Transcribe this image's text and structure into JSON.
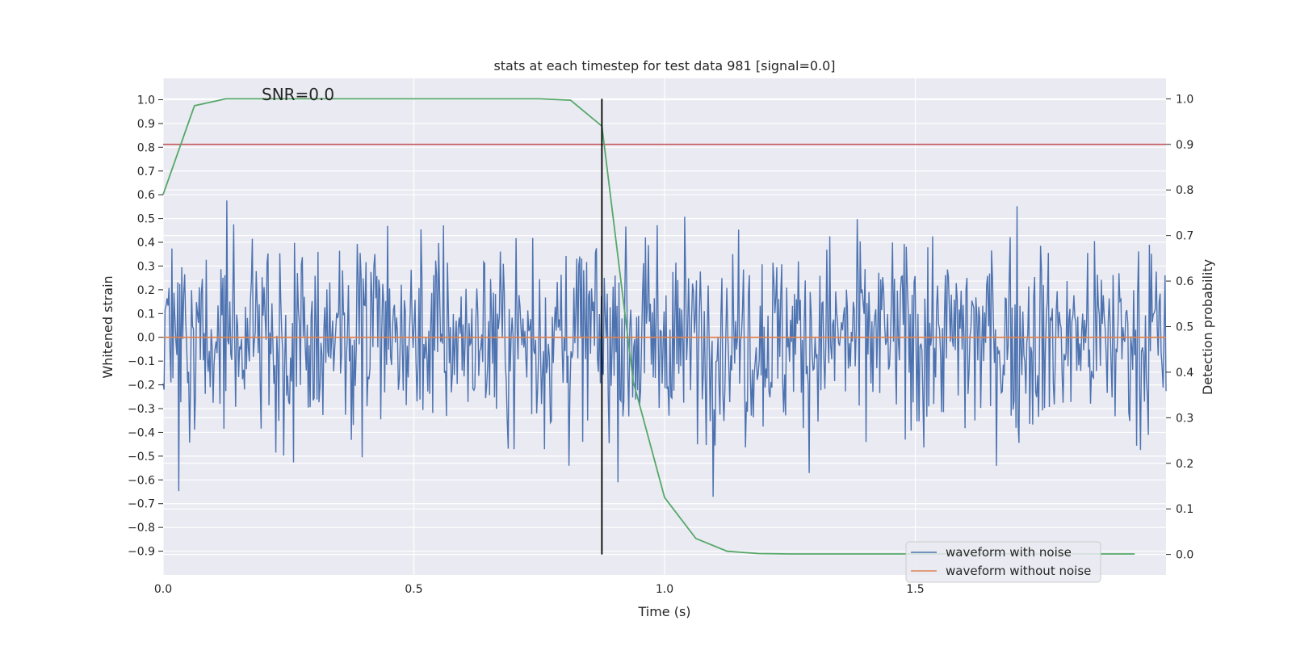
{
  "chart_data": {
    "type": "line",
    "title": "stats at each timestep for test data 981 [signal=0.0]",
    "xlabel": "Time (s)",
    "ylabel": "Whitened strain",
    "y2label": "Detection probability",
    "annotation": "SNR=0.0",
    "xlim": [
      0.0,
      2.0
    ],
    "ylim": [
      -1.0,
      1.09
    ],
    "y2lim": [
      -0.045,
      1.045
    ],
    "x_ticks": [
      "0.0",
      "0.5",
      "1.0",
      "1.5"
    ],
    "y_ticks": [
      "1.0",
      "0.9",
      "0.8",
      "0.7",
      "0.6",
      "0.5",
      "0.4",
      "0.3",
      "0.2",
      "0.1",
      "0.0",
      "−0.1",
      "−0.2",
      "−0.3",
      "−0.4",
      "−0.5",
      "−0.6",
      "−0.7",
      "−0.8",
      "−0.9"
    ],
    "y_tick_values": [
      1.0,
      0.9,
      0.8,
      0.7,
      0.6,
      0.5,
      0.4,
      0.3,
      0.2,
      0.1,
      0.0,
      -0.1,
      -0.2,
      -0.3,
      -0.4,
      -0.5,
      -0.6,
      -0.7,
      -0.8,
      -0.9
    ],
    "y2_ticks": [
      "1.0",
      "0.9",
      "0.8",
      "0.7",
      "0.6",
      "0.5",
      "0.4",
      "0.3",
      "0.2",
      "0.1",
      "0.0"
    ],
    "y2_tick_values": [
      1.0,
      0.9,
      0.8,
      0.7,
      0.6,
      0.5,
      0.4,
      0.3,
      0.2,
      0.1,
      0.0
    ],
    "grid": true,
    "legend_position": "bottom-right",
    "series": [
      {
        "name": "waveform with noise",
        "color": "#4c72b0",
        "axis": "left",
        "x_range": [
          0.0,
          2.0
        ],
        "n_points": 1024,
        "amplitude_range": [
          -0.9,
          1.0
        ],
        "noise_std": 0.3
      },
      {
        "name": "waveform without noise",
        "color": "#dd8452",
        "axis": "left",
        "x": [
          0.0,
          2.0
        ],
        "y": [
          0.0,
          0.0
        ]
      },
      {
        "color": "#55a868",
        "axis": "right",
        "x": [
          0.0,
          0.0625,
          0.125,
          0.1875,
          0.25,
          0.3125,
          0.375,
          0.4375,
          0.5,
          0.5625,
          0.625,
          0.6875,
          0.75,
          0.8125,
          0.875,
          0.9375,
          1.0,
          1.0625,
          1.125,
          1.1875,
          1.25,
          1.3125,
          1.375,
          1.4375,
          1.5,
          1.5625,
          1.625,
          1.6875,
          1.75,
          1.8125,
          1.875,
          1.9375
        ],
        "y": [
          0.79,
          0.985,
          1.0,
          1.0,
          1.0,
          1.0,
          1.0,
          1.0,
          1.0,
          1.0,
          1.0,
          1.0,
          1.0,
          0.997,
          0.94,
          0.38,
          0.125,
          0.035,
          0.007,
          0.002,
          0.001,
          0.001,
          0.001,
          0.001,
          0.001,
          0.001,
          0.001,
          0.001,
          0.001,
          0.001,
          0.001,
          0.001
        ]
      }
    ],
    "threshold_line": {
      "axis": "right",
      "value": 0.9,
      "color": "#c44e52"
    },
    "vertical_marker": {
      "x": 0.875,
      "color": "#000000"
    }
  }
}
